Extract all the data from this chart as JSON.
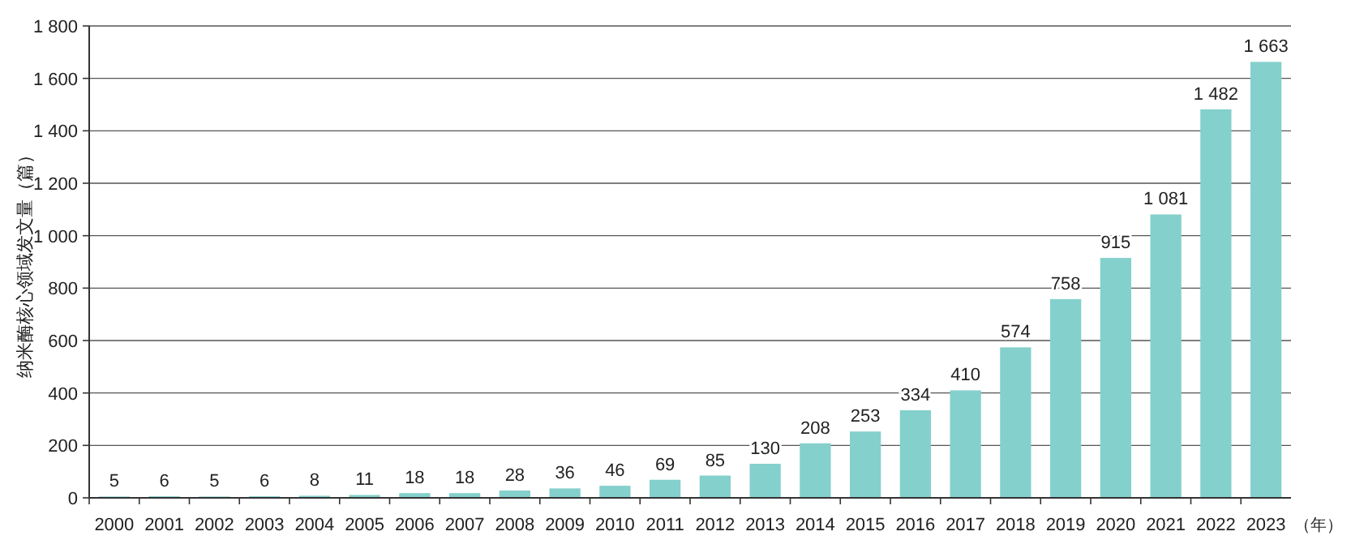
{
  "chart_data": {
    "type": "bar",
    "ylabel": "纳米酶核心领域发文量（篇）",
    "xlabel": "（年）",
    "categories": [
      "2000",
      "2001",
      "2002",
      "2003",
      "2004",
      "2005",
      "2006",
      "2007",
      "2008",
      "2009",
      "2010",
      "2011",
      "2012",
      "2013",
      "2014",
      "2015",
      "2016",
      "2017",
      "2018",
      "2019",
      "2020",
      "2021",
      "2022",
      "2023"
    ],
    "values": [
      5,
      6,
      5,
      6,
      8,
      11,
      18,
      18,
      28,
      36,
      46,
      69,
      85,
      130,
      208,
      253,
      334,
      410,
      574,
      758,
      915,
      1081,
      1482,
      1663
    ],
    "value_labels": [
      "5",
      "6",
      "5",
      "6",
      "8",
      "11",
      "18",
      "18",
      "28",
      "36",
      "46",
      "69",
      "85",
      "130",
      "208",
      "253",
      "334",
      "410",
      "574",
      "758",
      "915",
      "1 081",
      "1 482",
      "1 663"
    ],
    "color": "#84d0cc",
    "ylim": [
      0,
      1800
    ],
    "yticks": [
      0,
      200,
      400,
      600,
      800,
      {
        "value": 1000,
        "label": "1 000"
      },
      {
        "value": 1200,
        "label": "1 200"
      },
      {
        "value": 1400,
        "label": "1 400"
      },
      {
        "value": 1600,
        "label": "1 600"
      },
      {
        "value": 1800,
        "label": "1 800"
      }
    ],
    "grid": "y"
  }
}
